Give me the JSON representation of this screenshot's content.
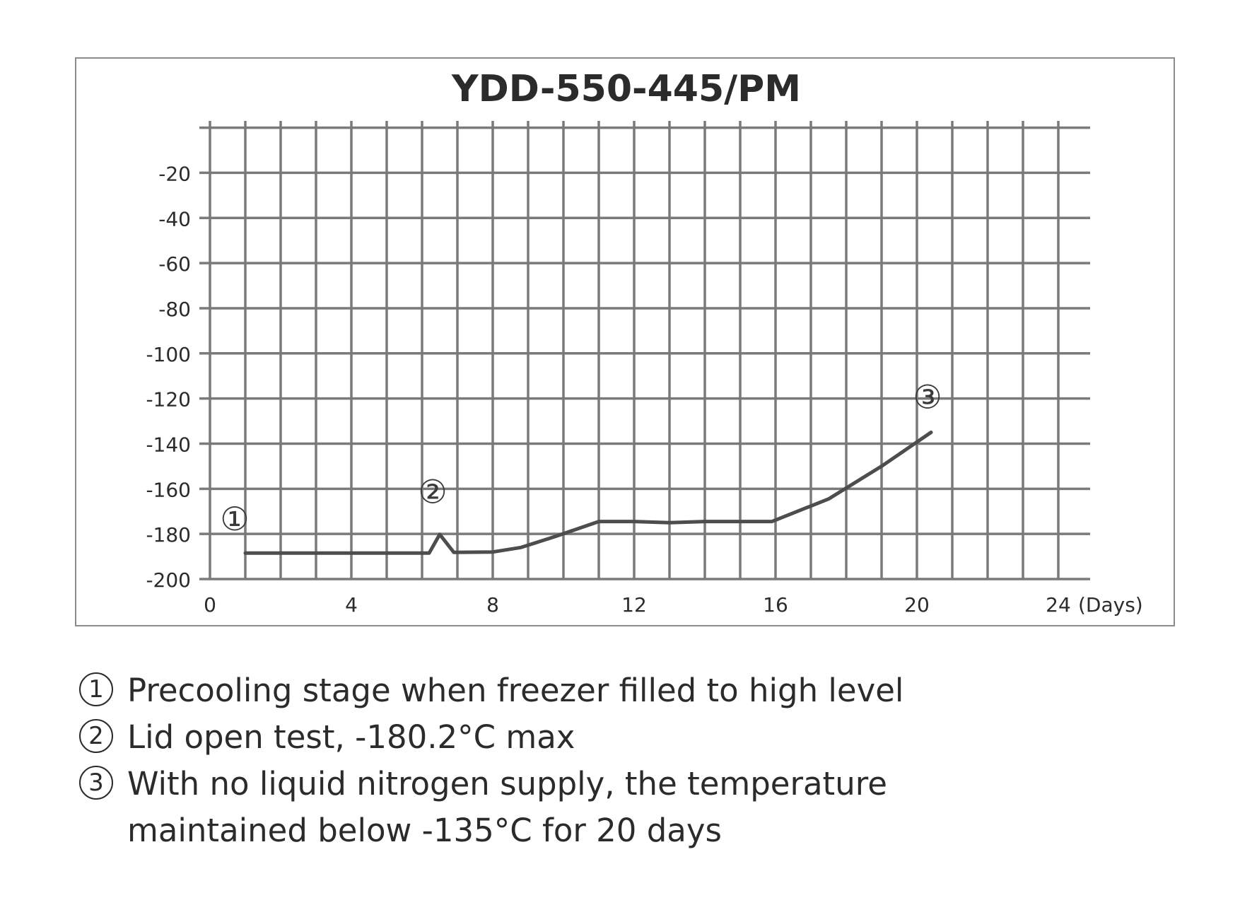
{
  "chart_data": {
    "type": "line",
    "title": "YDD-550-445/PM",
    "xlabel": "(Days)",
    "ylabel": "",
    "xlim": [
      0,
      24.5
    ],
    "ylim": [
      -200,
      0
    ],
    "x_ticks": [
      0,
      4,
      8,
      12,
      16,
      20,
      24
    ],
    "y_ticks": [
      -20,
      -40,
      -60,
      -80,
      -100,
      -120,
      -140,
      -160,
      -180,
      -200
    ],
    "grid": true,
    "line_color": "#4d4d4d",
    "grid_color": "#7a7a7a",
    "series": [
      {
        "values": [
          {
            "x": 1.0,
            "y": -188.5
          },
          {
            "x": 6.2,
            "y": -188.5
          },
          {
            "x": 6.5,
            "y": -180.2
          },
          {
            "x": 6.9,
            "y": -188.2
          },
          {
            "x": 8.0,
            "y": -188.0
          },
          {
            "x": 8.8,
            "y": -186.0
          },
          {
            "x": 9.8,
            "y": -181.0
          },
          {
            "x": 11.0,
            "y": -174.5
          },
          {
            "x": 12.0,
            "y": -174.5
          },
          {
            "x": 13.0,
            "y": -175.0
          },
          {
            "x": 14.0,
            "y": -174.5
          },
          {
            "x": 15.9,
            "y": -174.5
          },
          {
            "x": 17.5,
            "y": -164.5
          },
          {
            "x": 19.0,
            "y": -150.0
          },
          {
            "x": 20.4,
            "y": -135.0
          }
        ]
      }
    ],
    "annotations": [
      {
        "label": "①",
        "x": 0.7,
        "y": -174
      },
      {
        "label": "②",
        "x": 6.3,
        "y": -162
      },
      {
        "label": "③",
        "x": 20.3,
        "y": -120
      }
    ]
  },
  "notes": [
    {
      "marker": "1",
      "text": "Precooling stage when freezer filled to high level"
    },
    {
      "marker": "2",
      "text": "Lid open test, -180.2°C max"
    },
    {
      "marker": "3",
      "lines": [
        "With no liquid nitrogen supply, the temperature",
        "maintained below -135°C for 20 days"
      ]
    }
  ]
}
